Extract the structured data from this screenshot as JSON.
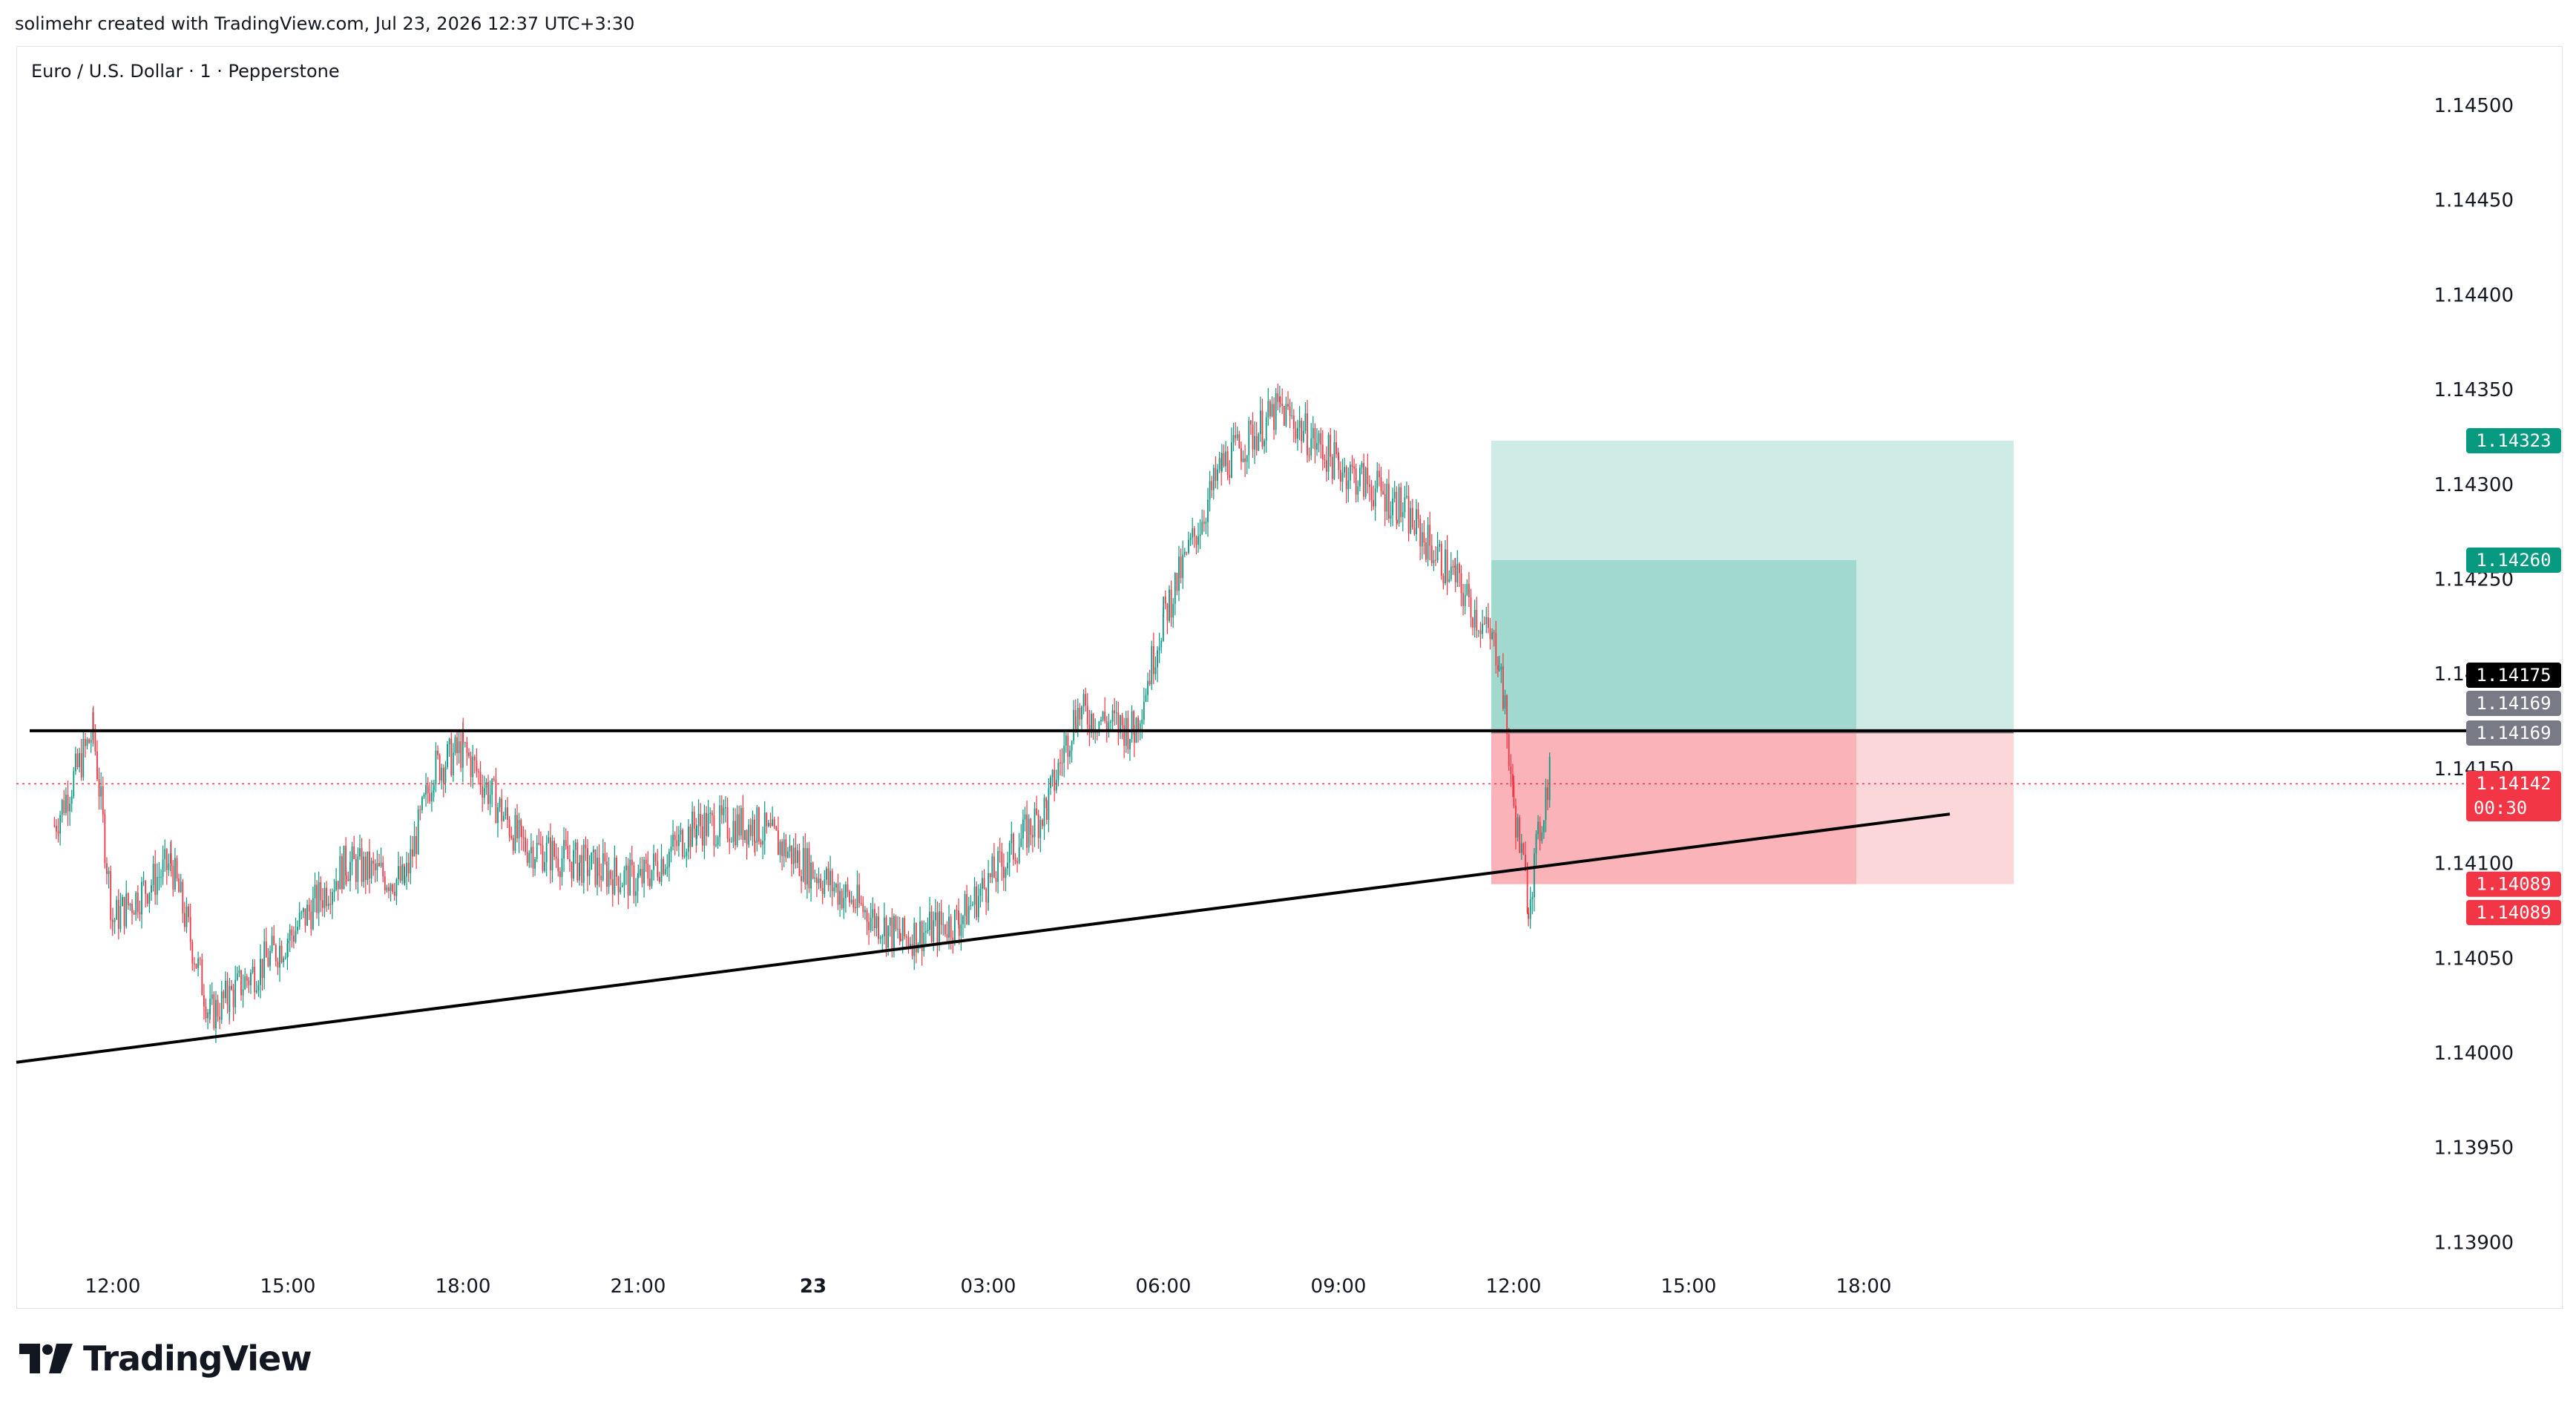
{
  "header": {
    "created_by": "solimehr created with TradingView.com, Jul 23, 2026 12:37 UTC+3:30"
  },
  "symbol": {
    "title": "Euro / U.S. Dollar · 1 · Pepperstone"
  },
  "branding": {
    "logo_text": "TradingView",
    "logo_icon": "tradingview-logo-icon"
  },
  "colors": {
    "up": "#089981",
    "down": "#f23645",
    "target_zone": "#089981",
    "stop_zone": "#f23645",
    "line": "#000000",
    "current_price": "#f23645"
  },
  "chart_data": {
    "type": "candlestick",
    "instrument": "Euro / U.S. Dollar",
    "timeframe": "1",
    "broker": "Pepperstone",
    "y_axis": {
      "ticks": [
        "1.14500",
        "1.14450",
        "1.14400",
        "1.14350",
        "1.14300",
        "1.14250",
        "1.14200",
        "1.14150",
        "1.14100",
        "1.14050",
        "1.14000",
        "1.13950",
        "1.13900"
      ],
      "range": [
        1.1388,
        1.1452
      ]
    },
    "x_axis": {
      "ticks": [
        "12:00",
        "15:00",
        "18:00",
        "21:00",
        "23",
        "03:00",
        "06:00",
        "09:00",
        "12:00",
        "15:00",
        "18:00"
      ]
    },
    "price_path_approx": [
      [
        "11:00",
        1.1412
      ],
      [
        "11:40",
        1.1417
      ],
      [
        "12:00",
        1.1407
      ],
      [
        "13:00",
        1.141
      ],
      [
        "13:40",
        1.1402
      ],
      [
        "14:00",
        1.1403
      ],
      [
        "15:00",
        1.1406
      ],
      [
        "16:00",
        1.141
      ],
      [
        "17:00",
        1.1409
      ],
      [
        "17:30",
        1.1415
      ],
      [
        "18:00",
        1.1416
      ],
      [
        "19:00",
        1.1411
      ],
      [
        "20:00",
        1.141
      ],
      [
        "21:00",
        1.1409
      ],
      [
        "22:00",
        1.1412
      ],
      [
        "23:00",
        1.1412
      ],
      [
        "01:30",
        1.1406
      ],
      [
        "02:30",
        1.1407
      ],
      [
        "03:00",
        1.1409
      ],
      [
        "04:00",
        1.1413
      ],
      [
        "04:30",
        1.1418
      ],
      [
        "05:30",
        1.1417
      ],
      [
        "06:00",
        1.1423
      ],
      [
        "07:00",
        1.1431
      ],
      [
        "08:00",
        1.1434
      ],
      [
        "09:00",
        1.1431
      ],
      [
        "10:00",
        1.1429
      ],
      [
        "11:00",
        1.1425
      ],
      [
        "11:45",
        1.1421
      ],
      [
        "12:00",
        1.1413
      ],
      [
        "12:15",
        1.1408
      ],
      [
        "12:37",
        1.1415
      ]
    ],
    "annotations": {
      "horizontal_line": 1.1417,
      "trendline": {
        "start": [
          "10:45",
          1.13995
        ],
        "end": [
          "19:45",
          1.14126
        ]
      },
      "position_tool": {
        "direction": "long",
        "entry": 1.14169,
        "stop": 1.14089,
        "target_outer": 1.14323,
        "target_inner": 1.1426
      }
    },
    "price_labels": [
      {
        "value": "1.14323",
        "color": "#089981"
      },
      {
        "value": "1.14260",
        "color": "#089981"
      },
      {
        "value": "1.14175",
        "color": "#000000"
      },
      {
        "value": "1.14169",
        "color": "#787b86"
      },
      {
        "value": "1.14169",
        "color": "#787b86"
      },
      {
        "value": "1.14142",
        "color": "#f23645",
        "countdown": "00:30"
      },
      {
        "value": "1.14089",
        "color": "#f23645"
      },
      {
        "value": "1.14089",
        "color": "#f23645"
      }
    ],
    "current_price": "1.14142",
    "countdown": "00:30"
  }
}
